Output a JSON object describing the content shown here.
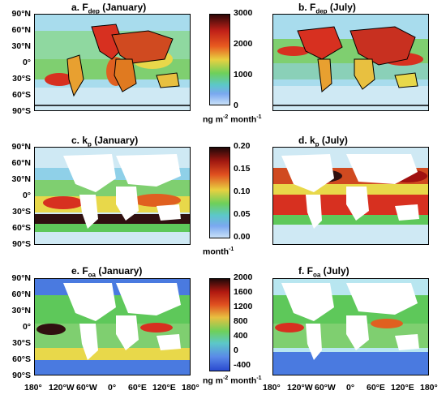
{
  "panels": {
    "a": {
      "prefix": "a. F",
      "sub": "dep",
      "suffix": " (January)"
    },
    "b": {
      "prefix": "b. F",
      "sub": "dep",
      "suffix": " (July)"
    },
    "c": {
      "prefix": "c. k",
      "sub": "p",
      "suffix": " (January)"
    },
    "d": {
      "prefix": "d. k",
      "sub": "p",
      "suffix": " (July)"
    },
    "e": {
      "prefix": "e. F",
      "sub": "oa",
      "suffix": " (January)"
    },
    "f": {
      "prefix": "f. F",
      "sub": "oa",
      "suffix": " (July)"
    }
  },
  "lat_labels": [
    "90°N",
    "60°N",
    "30°N",
    "0°",
    "30°S",
    "60°S",
    "90°S"
  ],
  "lon_labels": [
    "180°",
    "120°W",
    "60°W",
    "0°",
    "60°E",
    "120°E",
    "180°"
  ],
  "colorbars": {
    "top": {
      "ticks": [
        "3000",
        "2000",
        "1000",
        "0"
      ],
      "unit_a": "ng m",
      "unit_sup1": "-2",
      "unit_b": " month",
      "unit_sup2": "-1"
    },
    "mid": {
      "ticks": [
        "0.20",
        "0.15",
        "0.10",
        "0.05",
        "0.00"
      ],
      "unit_a": "month",
      "unit_sup1": "-1"
    },
    "bot": {
      "ticks": [
        "2000",
        "1600",
        "1200",
        "800",
        "400",
        "0",
        "-400"
      ],
      "unit_a": "ng m",
      "unit_sup1": "-2",
      "unit_b": " month",
      "unit_sup2": "-1"
    }
  },
  "colors": {
    "ocean_low": "#b8e6f0",
    "ocean_green": "#5ec85a",
    "ocean_yellow": "#e8d84a",
    "ocean_red": "#d73020",
    "land": "#ffffff"
  }
}
